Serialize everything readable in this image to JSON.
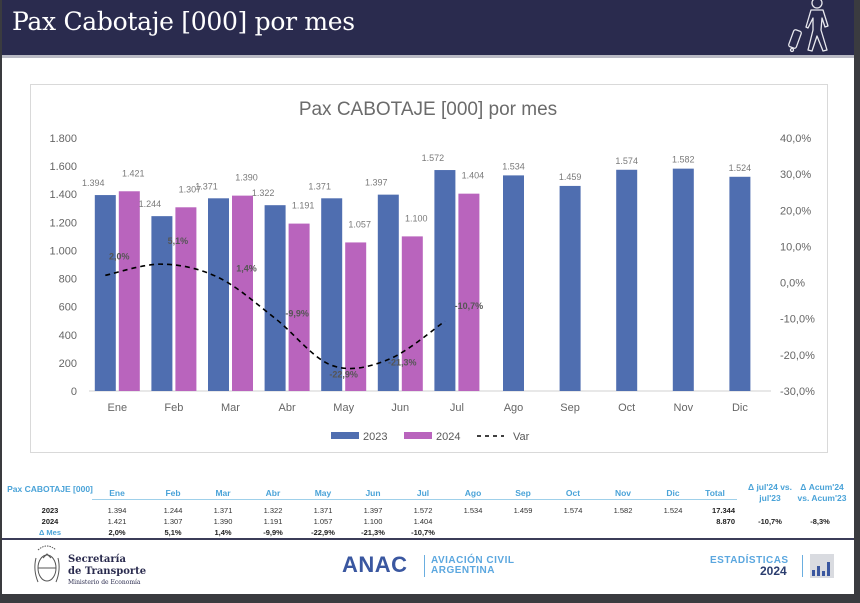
{
  "header": {
    "title": "Pax Cabotaje [000] por mes",
    "icon": "traveler-with-luggage-icon"
  },
  "chart_data": {
    "type": "bar",
    "title": "Pax CABOTAJE [000] por mes",
    "categories": [
      "Ene",
      "Feb",
      "Mar",
      "Abr",
      "May",
      "Jun",
      "Jul",
      "Ago",
      "Sep",
      "Oct",
      "Nov",
      "Dic"
    ],
    "series": [
      {
        "name": "2023",
        "type": "bar",
        "color": "#4f6eb0",
        "values": [
          1394,
          1244,
          1371,
          1322,
          1371,
          1397,
          1572,
          1534,
          1459,
          1574,
          1582,
          1524
        ],
        "labels": [
          "1.394",
          "1.244",
          "1.371",
          "1.322",
          "1.371",
          "1.397",
          "1.572",
          "1.534",
          "1.459",
          "1.574",
          "1.582",
          "1.524"
        ]
      },
      {
        "name": "2024",
        "type": "bar",
        "color": "#b964bd",
        "values": [
          1421,
          1307,
          1390,
          1191,
          1057,
          1100,
          1404,
          null,
          null,
          null,
          null,
          null
        ],
        "labels": [
          "1.421",
          "1.307",
          "1.390",
          "1.191",
          "1.057",
          "1.100",
          "1.404",
          "",
          "",
          "",
          "",
          ""
        ]
      },
      {
        "name": "Var",
        "type": "line",
        "style": "dashed",
        "color": "#000000",
        "axis": "right",
        "values": [
          2.0,
          5.1,
          1.4,
          -9.9,
          -22.9,
          -21.3,
          -10.7,
          null,
          null,
          null,
          null,
          null
        ],
        "labels": [
          "2,0%",
          "5,1%",
          "1,4%",
          "-9,9%",
          "-22,9%",
          "-21,3%",
          "-10,7%",
          "",
          "",
          "",
          "",
          ""
        ]
      }
    ],
    "ylim": [
      0,
      1800
    ],
    "yticks": [
      "0",
      "200",
      "400",
      "600",
      "800",
      "1.000",
      "1.200",
      "1.400",
      "1.600",
      "1.800"
    ],
    "y2lim": [
      -30,
      40
    ],
    "y2ticks": [
      "-30,0%",
      "-20,0%",
      "-10,0%",
      "0,0%",
      "10,0%",
      "20,0%",
      "30,0%",
      "40,0%"
    ],
    "xlabel": "",
    "ylabel": "",
    "grid": false,
    "legend": {
      "position": "bottom",
      "items": [
        "2023",
        "2024",
        "Var"
      ]
    }
  },
  "table": {
    "header_label": "Pax CABOTAJE [000]",
    "months": [
      "Ene",
      "Feb",
      "Mar",
      "Abr",
      "May",
      "Jun",
      "Jul",
      "Ago",
      "Sep",
      "Oct",
      "Nov",
      "Dic"
    ],
    "total_header": "Total",
    "delta_month_header_1": "Δ jul'24 vs.",
    "delta_month_header_2": "jul'23",
    "delta_accum_header_1": "Δ Acum'24",
    "delta_accum_header_2": "vs. Acum'23",
    "rows": [
      {
        "label": "2023",
        "values": [
          "1.394",
          "1.244",
          "1.371",
          "1.322",
          "1.371",
          "1.397",
          "1.572",
          "1.534",
          "1.459",
          "1.574",
          "1.582",
          "1.524"
        ],
        "total": "17.344",
        "delta_month": "",
        "delta_accum": ""
      },
      {
        "label": "2024",
        "values": [
          "1.421",
          "1.307",
          "1.390",
          "1.191",
          "1.057",
          "1.100",
          "1.404",
          "",
          "",
          "",
          "",
          ""
        ],
        "total": "8.870",
        "delta_month": "-10,7%",
        "delta_accum": "-8,3%"
      },
      {
        "label": "Δ Mes",
        "values": [
          "2,0%",
          "5,1%",
          "1,4%",
          "-9,9%",
          "-22,9%",
          "-21,3%",
          "-10,7%",
          "",
          "",
          "",
          "",
          ""
        ],
        "total": "",
        "delta_month": "",
        "delta_accum": ""
      }
    ]
  },
  "footer": {
    "secretaria_line1": "Secretaría",
    "secretaria_line2": "de Transporte",
    "secretaria_line3": "Ministerio de Economía",
    "anac": "ANAC",
    "anac_sub1": "AVIACIÓN CIVIL",
    "anac_sub2": "ARGENTINA",
    "estadisticas": "ESTADÍSTICAS",
    "year": "2024"
  }
}
